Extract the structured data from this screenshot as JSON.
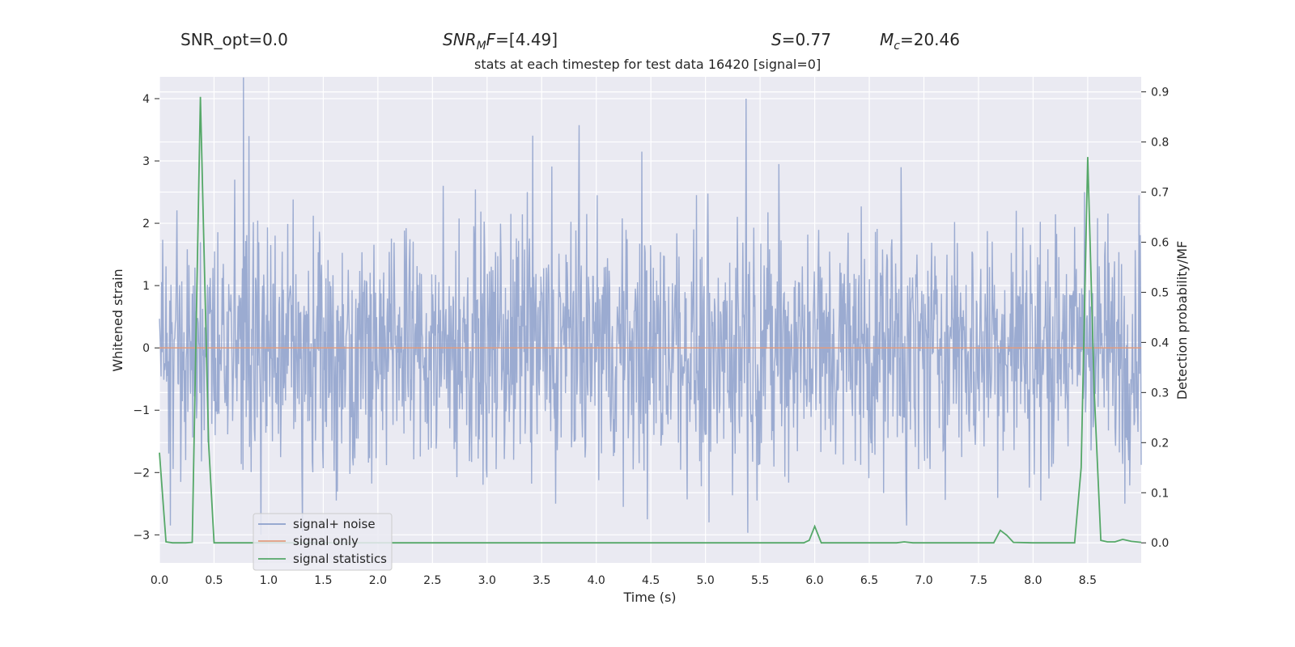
{
  "header": {
    "snr_opt": "SNR_opt=0.0",
    "snr_mf_label": "SNR",
    "snr_mf_sub": "M",
    "snr_mf_var": "F",
    "snr_mf_value": "=[4.49]",
    "s_label": "S",
    "s_value": "=0.77",
    "mc_label": "M",
    "mc_sub": "c",
    "mc_value": "=20.46"
  },
  "chart_data": {
    "type": "line",
    "title": "stats at each timestep for test data 16420 [signal=0]",
    "xlabel": "Time (s)",
    "ylabel": "Whitened strain",
    "y2label": "Detection probability/MF",
    "xlim": [
      0,
      8.99
    ],
    "ylim": [
      -3.45,
      4.35
    ],
    "y2lim": [
      -0.04,
      0.93
    ],
    "xticks": [
      0.0,
      0.5,
      1.0,
      1.5,
      2.0,
      2.5,
      3.0,
      3.5,
      4.0,
      4.5,
      5.0,
      5.5,
      6.0,
      6.5,
      7.0,
      7.5,
      8.0,
      8.5
    ],
    "xtick_labels": [
      "0.0",
      "0.5",
      "1.0",
      "1.5",
      "2.0",
      "2.5",
      "3.0",
      "3.5",
      "4.0",
      "4.5",
      "5.0",
      "5.5",
      "6.0",
      "6.5",
      "7.0",
      "7.5",
      "8.0",
      "8.5"
    ],
    "yticks": [
      -3,
      -2,
      -1,
      0,
      1,
      2,
      3,
      4
    ],
    "ytick_labels": [
      "−3",
      "−2",
      "−1",
      "0",
      "1",
      "2",
      "3",
      "4"
    ],
    "y2ticks": [
      0.0,
      0.1,
      0.2,
      0.3,
      0.4,
      0.5,
      0.6,
      0.7,
      0.8,
      0.9
    ],
    "y2tick_labels": [
      "0.0",
      "0.1",
      "0.2",
      "0.3",
      "0.4",
      "0.5",
      "0.6",
      "0.7",
      "0.8",
      "0.9"
    ],
    "legend_position": "lower-left",
    "series": [
      {
        "name": "signal+ noise",
        "color": "#8da0cb",
        "axis": "left",
        "kind": "noise",
        "duration": 8.99,
        "samples": 1800,
        "typical_range": [
          -1.5,
          1.6
        ],
        "peaks": [
          {
            "x": 0.82,
            "y": 3.4
          },
          {
            "x": 5.37,
            "y": 4.0
          },
          {
            "x": 4.42,
            "y": 3.15
          },
          {
            "x": 5.67,
            "y": 2.95
          },
          {
            "x": 6.79,
            "y": 2.9
          },
          {
            "x": 2.6,
            "y": 2.6
          },
          {
            "x": 0.69,
            "y": 2.7
          },
          {
            "x": 1.62,
            "y": 2.6
          },
          {
            "x": 3.37,
            "y": 2.5
          },
          {
            "x": 4.01,
            "y": 2.45
          },
          {
            "x": 8.97,
            "y": 2.45
          },
          {
            "x": 8.47,
            "y": 2.5
          },
          {
            "x": 0.93,
            "y": -3.0
          },
          {
            "x": 1.31,
            "y": -2.95
          },
          {
            "x": 6.84,
            "y": -2.85
          },
          {
            "x": 0.1,
            "y": -2.85
          },
          {
            "x": 5.03,
            "y": -2.8
          },
          {
            "x": 4.47,
            "y": -2.75
          },
          {
            "x": 3.63,
            "y": -2.5
          },
          {
            "x": 5.47,
            "y": -2.45
          },
          {
            "x": 1.62,
            "y": -2.45
          },
          {
            "x": 8.07,
            "y": -2.45
          },
          {
            "x": 8.84,
            "y": -2.5
          }
        ]
      },
      {
        "name": "signal only",
        "color": "#e09d7f",
        "axis": "left",
        "x": [
          0,
          8.99
        ],
        "y": [
          0,
          0
        ]
      },
      {
        "name": "signal statistics",
        "color": "#55a868",
        "axis": "right",
        "x": [
          0.0,
          0.06,
          0.12,
          0.18,
          0.24,
          0.3,
          0.375,
          0.45,
          0.5,
          1.0,
          5.9,
          5.95,
          6.0,
          6.06,
          6.5,
          6.75,
          6.82,
          6.9,
          7.5,
          7.64,
          7.7,
          7.76,
          7.82,
          8.0,
          8.38,
          8.44,
          8.5,
          8.56,
          8.62,
          8.68,
          8.75,
          8.82,
          8.9,
          8.99
        ],
        "y": [
          0.18,
          0.002,
          0.0,
          0.0,
          0.0,
          0.001,
          0.89,
          0.2,
          0.0,
          0.0,
          0.0,
          0.005,
          0.033,
          0.0,
          0.0,
          0.0,
          0.002,
          0.0,
          0.0,
          0.0,
          0.025,
          0.015,
          0.001,
          0.0,
          0.0,
          0.15,
          0.77,
          0.3,
          0.005,
          0.002,
          0.002,
          0.007,
          0.003,
          0.001
        ]
      }
    ]
  }
}
